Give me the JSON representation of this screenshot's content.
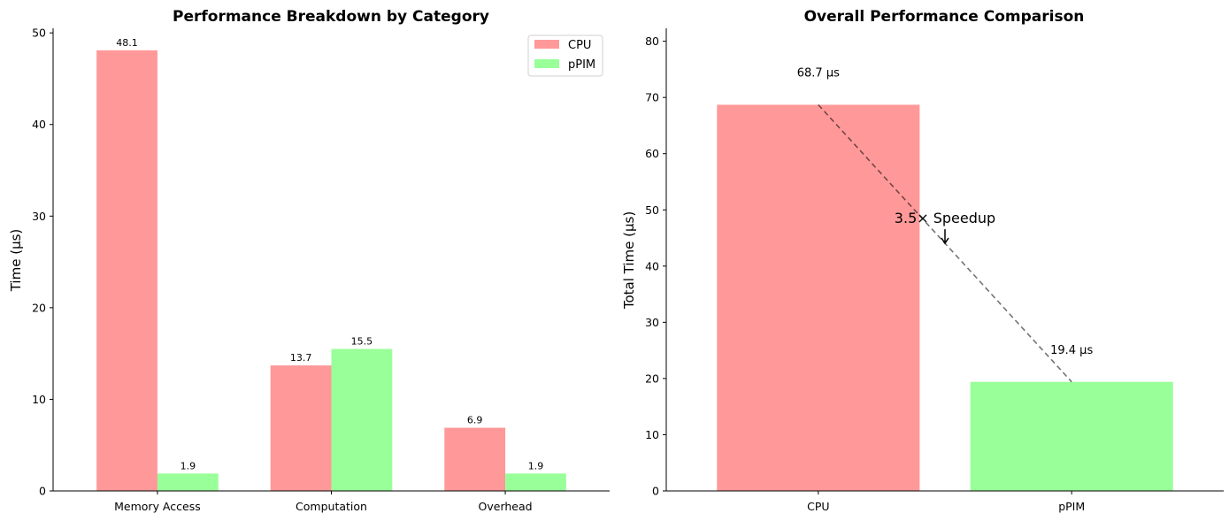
{
  "chart_data": [
    {
      "type": "bar",
      "title": "Performance Breakdown by Category",
      "xlabel": "",
      "ylabel": "Time (μs)",
      "categories": [
        "Memory Access",
        "Computation",
        "Overhead"
      ],
      "series": [
        {
          "name": "CPU",
          "values": [
            48.1,
            13.7,
            6.9
          ],
          "labels": [
            "48.1",
            "13.7",
            "6.9"
          ],
          "color": "#ff9999"
        },
        {
          "name": "pPIM",
          "values": [
            1.9,
            15.5,
            1.9
          ],
          "labels": [
            "1.9",
            "15.5",
            "1.9"
          ],
          "color": "#99ff99"
        }
      ],
      "ylim": [
        0,
        50.5
      ],
      "yticks": [
        0,
        10,
        20,
        30,
        40,
        50
      ],
      "legend": "top-right",
      "grid": false
    },
    {
      "type": "bar",
      "title": "Overall Performance Comparison",
      "xlabel": "",
      "ylabel": "Total Time (μs)",
      "categories": [
        "CPU",
        "pPIM"
      ],
      "values": [
        68.7,
        19.4
      ],
      "labels": [
        "68.7 μs",
        "19.4 μs"
      ],
      "colors": [
        "#ff9999",
        "#99ff99"
      ],
      "ylim": [
        0,
        82.3
      ],
      "yticks": [
        0,
        10,
        20,
        30,
        40,
        50,
        60,
        70,
        80
      ],
      "annotation": {
        "text": "3.5× Speedup",
        "arrow_to": 44.05
      },
      "grid": false
    }
  ]
}
